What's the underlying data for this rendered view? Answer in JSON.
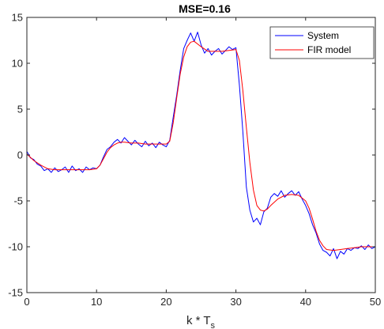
{
  "chart_data": {
    "type": "line",
    "title": "MSE=0.16",
    "xlabel": {
      "main": "k * T",
      "subscript": "s"
    },
    "ylabel": "",
    "xlim": [
      0,
      50
    ],
    "ylim": [
      -15,
      15
    ],
    "xticks": [
      0,
      10,
      20,
      30,
      40,
      50
    ],
    "yticks": [
      -15,
      -10,
      -5,
      0,
      5,
      10,
      15
    ],
    "grid": false,
    "legend_position": "top-right",
    "series": [
      {
        "name": "System",
        "color": "#0000ff",
        "x": [
          0,
          0.5,
          1,
          1.5,
          2,
          2.5,
          3,
          3.5,
          4,
          4.5,
          5,
          5.5,
          6,
          6.5,
          7,
          7.5,
          8,
          8.5,
          9,
          9.5,
          10,
          10.5,
          11,
          11.5,
          12,
          12.5,
          13,
          13.5,
          14,
          14.5,
          15,
          15.5,
          16,
          16.5,
          17,
          17.5,
          18,
          18.5,
          19,
          19.5,
          20,
          20.5,
          21,
          21.5,
          22,
          22.5,
          23,
          23.5,
          24,
          24.5,
          25,
          25.5,
          26,
          26.5,
          27,
          27.5,
          28,
          28.5,
          29,
          29.5,
          30,
          30.5,
          31,
          31.5,
          32,
          32.5,
          33,
          33.5,
          34,
          34.5,
          35,
          35.5,
          36,
          36.5,
          37,
          37.5,
          38,
          38.5,
          39,
          39.5,
          40,
          40.5,
          41,
          41.5,
          42,
          42.5,
          43,
          43.5,
          44,
          44.5,
          45,
          45.5,
          46,
          46.5,
          47,
          47.5,
          48,
          48.5,
          49,
          49.5,
          50
        ],
        "values": [
          0.4,
          -0.3,
          -0.5,
          -1.0,
          -1.2,
          -1.7,
          -1.5,
          -1.9,
          -1.4,
          -1.8,
          -1.6,
          -1.3,
          -1.9,
          -1.2,
          -1.7,
          -1.5,
          -1.9,
          -1.3,
          -1.6,
          -1.4,
          -1.5,
          -1.1,
          -0.2,
          0.6,
          0.9,
          1.4,
          1.7,
          1.3,
          1.9,
          1.5,
          1.1,
          1.6,
          1.2,
          0.9,
          1.5,
          1.0,
          1.3,
          0.8,
          1.4,
          1.1,
          0.9,
          1.6,
          4.1,
          6.5,
          9.2,
          11.6,
          12.5,
          13.3,
          12.4,
          13.4,
          12.0,
          11.1,
          11.6,
          10.9,
          11.3,
          11.6,
          11.0,
          11.4,
          11.8,
          11.5,
          11.7,
          7.6,
          2.5,
          -3.5,
          -6.0,
          -7.3,
          -6.9,
          -7.6,
          -6.2,
          -5.8,
          -4.6,
          -4.2,
          -4.5,
          -3.9,
          -4.6,
          -4.2,
          -3.9,
          -4.4,
          -4.0,
          -4.8,
          -5.5,
          -6.4,
          -7.6,
          -8.5,
          -9.7,
          -10.4,
          -10.6,
          -11.0,
          -10.2,
          -11.3,
          -10.5,
          -10.8,
          -10.2,
          -10.4,
          -10.1,
          -10.2,
          -9.9,
          -10.3,
          -9.8,
          -10.2,
          -10.0
        ]
      },
      {
        "name": "FIR model",
        "color": "#ff0000",
        "x": [
          0,
          1,
          2,
          3,
          4,
          5,
          6,
          7,
          8,
          9,
          10,
          10.5,
          11,
          11.5,
          12,
          12.5,
          13,
          13.5,
          14,
          15,
          16,
          17,
          18,
          19,
          20,
          20.5,
          21,
          21.5,
          22,
          22.5,
          23,
          23.5,
          24,
          25,
          26,
          27,
          28,
          29,
          30,
          30.5,
          31,
          31.5,
          32,
          32.5,
          33,
          33.5,
          34,
          34.5,
          35,
          36,
          37,
          38,
          39,
          40,
          40.5,
          41,
          41.5,
          42,
          42.5,
          43,
          44,
          45,
          46,
          47,
          48,
          49,
          50
        ],
        "values": [
          0.1,
          -0.6,
          -1.1,
          -1.5,
          -1.6,
          -1.6,
          -1.6,
          -1.6,
          -1.6,
          -1.6,
          -1.5,
          -1.1,
          -0.4,
          0.3,
          0.8,
          1.1,
          1.3,
          1.4,
          1.4,
          1.3,
          1.3,
          1.2,
          1.2,
          1.2,
          1.2,
          1.5,
          3.5,
          6.2,
          8.8,
          10.7,
          11.8,
          12.3,
          12.4,
          11.8,
          11.3,
          11.3,
          11.3,
          11.4,
          11.5,
          10.3,
          7.0,
          3.0,
          -0.8,
          -3.8,
          -5.5,
          -6.0,
          -6.1,
          -5.9,
          -5.5,
          -4.8,
          -4.4,
          -4.3,
          -4.4,
          -5.0,
          -5.8,
          -7.0,
          -8.3,
          -9.3,
          -9.9,
          -10.3,
          -10.4,
          -10.3,
          -10.2,
          -10.1,
          -10.0,
          -10.0,
          -10.0
        ]
      }
    ]
  }
}
